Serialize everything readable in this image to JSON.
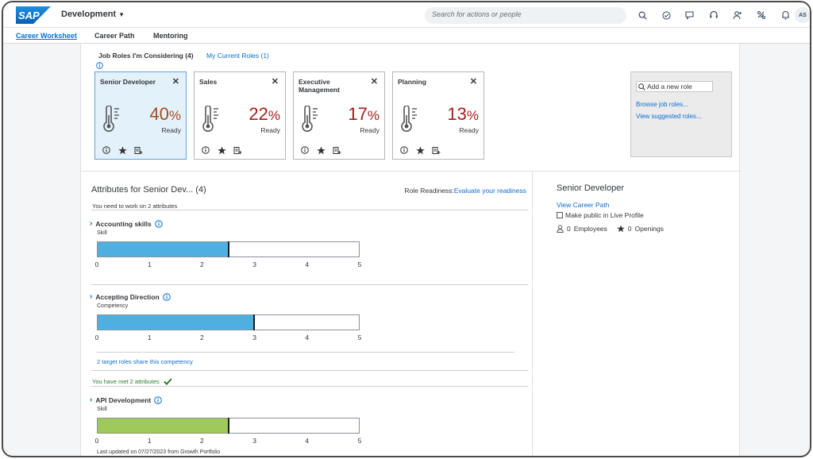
{
  "header": {
    "logo_text": "SAP",
    "app_title": "Development",
    "search_placeholder": "Search for actions or people",
    "avatar_initials": "AS",
    "icons": [
      "search-icon",
      "todo-check-icon",
      "chat-icon",
      "headset-icon",
      "people-icon",
      "feedback-icon",
      "notification-bell-icon"
    ]
  },
  "tabs": [
    "Career Worksheet",
    "Career Path",
    "Mentoring"
  ],
  "roles": {
    "tab_considering": "Job Roles I'm Considering (4)",
    "tab_current": "My Current Roles (1)",
    "cards": [
      {
        "title": "Senior Developer",
        "percent": "40",
        "status": "Ready",
        "color": "#a64b1e",
        "selected": true
      },
      {
        "title": "Sales",
        "percent": "22",
        "status": "Ready",
        "color": "#a61c1c",
        "selected": false
      },
      {
        "title": "Executive Management",
        "percent": "17",
        "status": "Ready",
        "color": "#a61c1c",
        "selected": false
      },
      {
        "title": "Planning",
        "percent": "13",
        "status": "Ready",
        "color": "#a61c1c",
        "selected": false
      }
    ],
    "close_glyph": "✕",
    "percent_symbol": "%",
    "add_role_placeholder": "Add a new role",
    "browse_link": "Browse job roles...",
    "suggested_link": "View suggested roles..."
  },
  "attributes": {
    "title": "Attributes for Senior Dev... (4)",
    "readiness_label": "Role Readiness:",
    "readiness_link": "Evaluate your readiness",
    "need_work_note": "You need to work on 2 attributes",
    "met_note": "You have met 2 attributes",
    "axis_ticks": [
      "0",
      "1",
      "2",
      "3",
      "4",
      "5"
    ],
    "axis_max": 5,
    "items": [
      {
        "name": "Accounting skills",
        "type": "Skill",
        "value": 2.5,
        "target": 2.5,
        "fill_color": "#4fb0e0"
      },
      {
        "name": "Accepting Direction",
        "type": "Competency",
        "value": 3.0,
        "target": 3.0,
        "fill_color": "#4fb0e0",
        "share_link": "2 target roles share this competency"
      },
      {
        "name": "API Development",
        "type": "Skill",
        "value": 2.5,
        "target": 2.5,
        "fill_color": "#9fc95a",
        "updated": "Last updated on 07/27/2023 from Growth Portfolio"
      }
    ]
  },
  "detail": {
    "title": "Senior Developer",
    "career_path_link": "View Career Path",
    "public_checkbox_label": "Make public in Live Profile",
    "public_checked": false,
    "employees_count": "0",
    "employees_label": "Employees",
    "openings_count": "0",
    "openings_label": "Openings"
  }
}
